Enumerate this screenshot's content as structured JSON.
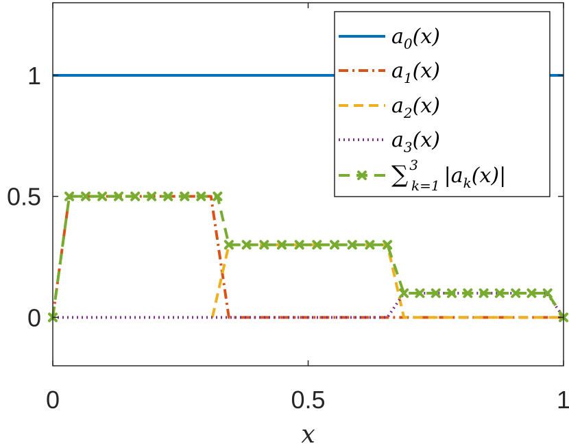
{
  "chart_data": {
    "type": "line",
    "xlabel": "x",
    "ylabel": "",
    "xlim": [
      0,
      1
    ],
    "ylim": [
      -0.2,
      1.3
    ],
    "xticks": [
      0,
      0.5,
      1
    ],
    "xtick_labels": [
      "0",
      "0.5",
      "1"
    ],
    "yticks": [
      0,
      0.5,
      1
    ],
    "ytick_labels": [
      "0",
      "0.5",
      "1"
    ],
    "grid": false,
    "legend_position": "top-right",
    "series": [
      {
        "legend": {
          "base": "a",
          "sub": "0",
          "arg": "(x)"
        },
        "color": "#0072BD",
        "style": "solid",
        "x": [
          0,
          1
        ],
        "y": [
          1,
          1
        ]
      },
      {
        "legend": {
          "base": "a",
          "sub": "1",
          "arg": "(x)"
        },
        "color": "#D95319",
        "style": "dashdot",
        "x": [
          0,
          0.0323,
          0.3097,
          0.3448,
          1
        ],
        "y": [
          0,
          0.5,
          0.5,
          0,
          0
        ]
      },
      {
        "legend": {
          "base": "a",
          "sub": "2",
          "arg": "(x)"
        },
        "color": "#EDB120",
        "style": "dashed",
        "x": [
          0.3125,
          0.3448,
          0.6552,
          0.6875,
          1
        ],
        "y": [
          0,
          0.3,
          0.3,
          0,
          0
        ]
      },
      {
        "legend": {
          "base": "a",
          "sub": "3",
          "arg": "(x)"
        },
        "color": "#7E2F8E",
        "style": "dotted",
        "x": [
          0,
          0.6552,
          0.6875,
          0.9677,
          1
        ],
        "y": [
          0,
          0,
          0.1,
          0.1,
          0
        ]
      },
      {
        "legend": {
          "sum_top": "3",
          "sum_bottom": "k=1",
          "body": "|a",
          "sub": "k",
          "arg": "(x)|"
        },
        "color": "#77AC30",
        "style": "dashed-markers",
        "x": [
          0,
          0.0323,
          0.0645,
          0.0968,
          0.129,
          0.1613,
          0.1935,
          0.2258,
          0.2581,
          0.2903,
          0.3226,
          0.3448,
          0.3793,
          0.4138,
          0.4483,
          0.4828,
          0.5172,
          0.5517,
          0.5862,
          0.6207,
          0.6552,
          0.6875,
          0.7188,
          0.75,
          0.7813,
          0.8125,
          0.8438,
          0.875,
          0.9063,
          0.9375,
          0.9688,
          1
        ],
        "y": [
          0,
          0.5,
          0.5,
          0.5,
          0.5,
          0.5,
          0.5,
          0.5,
          0.5,
          0.5,
          0.5,
          0.3,
          0.3,
          0.3,
          0.3,
          0.3,
          0.3,
          0.3,
          0.3,
          0.3,
          0.3,
          0.1,
          0.1,
          0.1,
          0.1,
          0.1,
          0.1,
          0.1,
          0.1,
          0.1,
          0.1,
          0
        ]
      }
    ]
  }
}
